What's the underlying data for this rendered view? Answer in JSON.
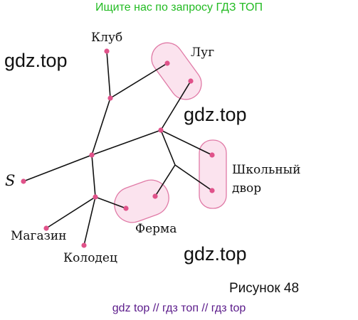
{
  "banner": "Ищите нас по запросу ГДЗ ТОП",
  "watermarks": [
    "gdz.top",
    "gdz.top",
    "gdz.top"
  ],
  "caption": "Рисунок 48",
  "footer": "gdz top  //  гдз топ  //  гдз top",
  "labels": {
    "club": "Клуб",
    "meadow": "Луг",
    "school": "Школьный",
    "school_yard": "двор",
    "start": "S",
    "shop": "Магазин",
    "well": "Колодец",
    "farm": "Ферма"
  },
  "colors": {
    "node": "#e0528a",
    "group_fill": "#fbe3ee",
    "group_stroke": "#e07aa6",
    "edge": "#111111"
  }
}
